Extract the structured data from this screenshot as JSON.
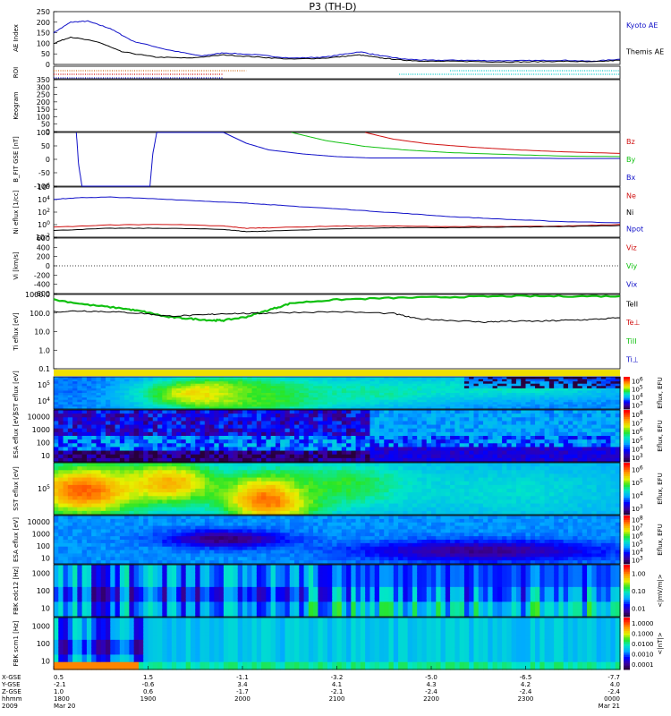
{
  "title": "P3 (TH-D)",
  "colors": {
    "black": "#000000",
    "blue": "#1010c8",
    "red": "#d01010",
    "green": "#10c010",
    "cyan": "#00c8c8",
    "orange": "#d07020"
  },
  "chart_data": [
    {
      "type": "line",
      "name": "ae-index",
      "ylabel": "AE Index",
      "ylim": [
        0,
        250
      ],
      "yticks": [
        "0",
        "50",
        "100",
        "150",
        "200",
        "250"
      ],
      "legend": [
        {
          "label": "Kyoto AE",
          "color": "blue"
        },
        {
          "label": "Themis AE",
          "color": "black"
        }
      ],
      "series": [
        {
          "name": "Kyoto AE",
          "color": "blue",
          "x": [
            0,
            0.03,
            0.06,
            0.1,
            0.14,
            0.2,
            0.26,
            0.3,
            0.36,
            0.42,
            0.48,
            0.54,
            0.58,
            0.62,
            0.66,
            0.72,
            0.78,
            0.84,
            0.9,
            0.95,
            1.0
          ],
          "y": [
            150,
            200,
            205,
            170,
            110,
            70,
            40,
            55,
            45,
            30,
            35,
            60,
            40,
            25,
            20,
            20,
            18,
            18,
            20,
            15,
            25
          ]
        },
        {
          "name": "Themis AE",
          "color": "black",
          "x": [
            0,
            0.03,
            0.08,
            0.12,
            0.18,
            0.24,
            0.3,
            0.36,
            0.42,
            0.48,
            0.54,
            0.58,
            0.62,
            0.66,
            0.72,
            0.78,
            0.84,
            0.9,
            0.95,
            1.0
          ],
          "y": [
            100,
            130,
            105,
            60,
            35,
            30,
            45,
            35,
            25,
            30,
            45,
            30,
            20,
            15,
            15,
            12,
            12,
            15,
            12,
            20
          ]
        }
      ]
    },
    {
      "type": "scatter",
      "name": "roi",
      "ylabel": "ROI",
      "segments": [
        {
          "row": 0,
          "x": [
            0.0,
            0.34
          ],
          "color": "orange"
        },
        {
          "row": 1,
          "x": [
            0.0,
            0.3
          ],
          "color": "red"
        },
        {
          "row": 2,
          "x": [
            0.0,
            0.3
          ],
          "color": "blue"
        },
        {
          "row": 0,
          "x": [
            0.7,
            1.0
          ],
          "color": "cyan"
        },
        {
          "row": 1,
          "x": [
            0.61,
            1.0
          ],
          "color": "cyan"
        }
      ]
    },
    {
      "type": "line",
      "name": "keogram",
      "ylabel": "Keogram",
      "ylim": [
        0,
        350
      ],
      "yticks": [
        "0",
        "50",
        "100",
        "150",
        "200",
        "250",
        "300",
        "350"
      ],
      "series": []
    },
    {
      "type": "line",
      "name": "b-field",
      "ylabel": "B_FIT GSE [nT]",
      "ylim": [
        -100,
        100
      ],
      "yticks": [
        "-100",
        "-50",
        "0",
        "50",
        "100"
      ],
      "legend": [
        {
          "label": "Bz",
          "color": "red"
        },
        {
          "label": "By",
          "color": "green"
        },
        {
          "label": "Bx",
          "color": "blue"
        }
      ],
      "series": [
        {
          "name": "Bx",
          "color": "blue",
          "x": [
            0.04,
            0.044,
            0.05,
            0.17,
            0.175,
            0.182,
            0.3,
            0.34,
            0.38,
            0.44,
            0.5,
            0.56,
            0.62,
            0.7,
            0.8,
            0.9,
            1.0
          ],
          "y": [
            100,
            -20,
            -100,
            -100,
            20,
            100,
            100,
            60,
            35,
            20,
            10,
            5,
            5,
            5,
            5,
            3,
            3
          ]
        },
        {
          "name": "By",
          "color": "green",
          "x": [
            0.42,
            0.48,
            0.55,
            0.62,
            0.7,
            0.8,
            0.9,
            1.0
          ],
          "y": [
            100,
            70,
            48,
            35,
            25,
            18,
            12,
            10
          ]
        },
        {
          "name": "Bz",
          "color": "red",
          "x": [
            0.55,
            0.6,
            0.66,
            0.74,
            0.82,
            0.9,
            1.0
          ],
          "y": [
            100,
            75,
            58,
            45,
            35,
            28,
            22
          ]
        }
      ]
    },
    {
      "type": "line",
      "name": "density",
      "ylabel": "Ni eflux [1/cc]",
      "ylog": true,
      "ylim": [
        -2,
        7
      ],
      "yticks": [
        "10^-2",
        "10^0",
        "10^2",
        "10^4",
        "10^6"
      ],
      "legend": [
        {
          "label": "Ne",
          "color": "red"
        },
        {
          "label": "Ni",
          "color": "black"
        },
        {
          "label": "Npot",
          "color": "blue"
        }
      ],
      "series": [
        {
          "name": "Npot",
          "color": "blue",
          "x": [
            0,
            0.05,
            0.1,
            0.2,
            0.3,
            0.36,
            0.4,
            0.5,
            0.6,
            0.7,
            0.8,
            0.9,
            1.0
          ],
          "y": [
            4.8,
            5.1,
            5.2,
            4.8,
            4.3,
            4.0,
            3.7,
            3.1,
            2.4,
            1.7,
            1.2,
            0.8,
            0.6
          ]
        },
        {
          "name": "Ne",
          "color": "red",
          "x": [
            0,
            0.1,
            0.2,
            0.3,
            0.34,
            0.38,
            0.5,
            0.6,
            0.7,
            0.8,
            0.9,
            1.0
          ],
          "y": [
            -0.2,
            0.2,
            0.3,
            0.0,
            -0.4,
            -0.3,
            0.0,
            0.0,
            -0.1,
            -0.1,
            0.0,
            0.3
          ]
        },
        {
          "name": "Ni",
          "color": "black",
          "x": [
            0,
            0.1,
            0.2,
            0.3,
            0.34,
            0.38,
            0.5,
            0.6,
            0.7,
            0.8,
            0.9,
            1.0
          ],
          "y": [
            -0.8,
            -0.4,
            -0.4,
            -0.6,
            -1.0,
            -0.9,
            -0.5,
            -0.3,
            -0.3,
            -0.2,
            -0.1,
            0.1
          ]
        }
      ]
    },
    {
      "type": "line",
      "name": "velocity",
      "ylabel": "Vi [km/s]",
      "ylim": [
        -600,
        600
      ],
      "yticks": [
        "-600",
        "-400",
        "-200",
        "0",
        "200",
        "400",
        "600"
      ],
      "legend": [
        {
          "label": "Viz",
          "color": "red"
        },
        {
          "label": "Viy",
          "color": "green"
        },
        {
          "label": "Vix",
          "color": "blue"
        }
      ],
      "series": []
    },
    {
      "type": "line",
      "name": "temperature",
      "ylabel": "Ti eflux [eV]",
      "ylog": true,
      "ylim": [
        -1,
        3.3
      ],
      "yticks": [
        "0.1",
        "1.0",
        "10.0",
        "100.0",
        "1000.0"
      ],
      "legend": [
        {
          "label": "TeII",
          "color": "black"
        },
        {
          "label": "Te⊥",
          "color": "red"
        },
        {
          "label": "TiII",
          "color": "green"
        },
        {
          "label": "Ti⊥",
          "color": "blue"
        }
      ],
      "series": [
        {
          "name": "TiII",
          "color": "green",
          "x": [
            0,
            0.06,
            0.12,
            0.16,
            0.2,
            0.24,
            0.28,
            0.3,
            0.34,
            0.38,
            0.42,
            0.5,
            0.6,
            0.7,
            0.8,
            0.9,
            1.0
          ],
          "y": [
            3.0,
            2.7,
            2.5,
            2.3,
            2.0,
            1.9,
            1.8,
            1.8,
            2.0,
            2.4,
            2.8,
            3.0,
            3.1,
            3.15,
            3.2,
            3.2,
            3.2
          ]
        },
        {
          "name": "TeII",
          "color": "black",
          "x": [
            0,
            0.05,
            0.1,
            0.16,
            0.2,
            0.26,
            0.3,
            0.36,
            0.4,
            0.5,
            0.6,
            0.64,
            0.7,
            0.76,
            0.8,
            0.86,
            0.9,
            0.95,
            1.0
          ],
          "y": [
            2.3,
            2.35,
            2.3,
            2.2,
            2.05,
            2.1,
            2.2,
            2.2,
            2.25,
            2.3,
            2.2,
            1.9,
            1.8,
            1.7,
            1.75,
            1.75,
            1.8,
            1.85,
            1.95
          ]
        }
      ]
    },
    {
      "type": "heatmap",
      "name": "sst-ion",
      "ylabel": "SST eflux [eV]",
      "yticks": [
        "10^4",
        "10^5"
      ],
      "colorbar": [
        "10^3",
        "10^4",
        "10^5",
        "10^6"
      ],
      "colorbar_label": "Eflux, EFU",
      "blobs": [
        {
          "x": 0.04,
          "y": 0.7,
          "rx": 0.08,
          "ry": 0.5,
          "v": 0.3
        },
        {
          "x": 0.28,
          "y": 0.5,
          "rx": 0.14,
          "ry": 0.55,
          "v": 0.85
        },
        {
          "x": 0.38,
          "y": 0.45,
          "rx": 0.16,
          "ry": 0.55,
          "v": 0.62
        },
        {
          "x": 0.55,
          "y": 0.55,
          "rx": 0.2,
          "ry": 0.5,
          "v": 0.5
        },
        {
          "x": 0.8,
          "y": 0.7,
          "rx": 0.25,
          "ry": 0.4,
          "v": 0.48
        }
      ],
      "base": 0.32,
      "dark_top_right": true
    },
    {
      "type": "heatmap",
      "name": "esa-ion",
      "ylabel": "ESA eflux [eV]",
      "yticks": [
        "10",
        "100",
        "1000",
        "10000"
      ],
      "colorbar": [
        "10^3",
        "10^4",
        "10^5",
        "10^6",
        "10^7",
        "10^8"
      ],
      "colorbar_label": "Eflux, EFU",
      "noisy": true
    },
    {
      "type": "heatmap",
      "name": "sst-electron",
      "ylabel": "SST eflux [eV]",
      "yticks": [
        "10^5"
      ],
      "colorbar": [
        "10^3",
        "10^4",
        "10^5",
        "10^6"
      ],
      "colorbar_label": "Eflux, EFU",
      "blobs": [
        {
          "x": 0.05,
          "y": 0.5,
          "rx": 0.12,
          "ry": 0.6,
          "v": 0.9
        },
        {
          "x": 0.2,
          "y": 0.65,
          "rx": 0.1,
          "ry": 0.5,
          "v": 0.8
        },
        {
          "x": 0.38,
          "y": 0.35,
          "rx": 0.1,
          "ry": 0.55,
          "v": 0.95
        },
        {
          "x": 0.52,
          "y": 0.6,
          "rx": 0.15,
          "ry": 0.5,
          "v": 0.6
        },
        {
          "x": 0.8,
          "y": 0.5,
          "rx": 0.25,
          "ry": 0.6,
          "v": 0.45
        }
      ],
      "base": 0.35
    },
    {
      "type": "heatmap",
      "name": "esa-electron",
      "ylabel": "ESA eflux [eV]",
      "yticks": [
        "10",
        "100",
        "1000",
        "10000"
      ],
      "colorbar": [
        "10^3",
        "10^4",
        "10^5",
        "10^6",
        "10^7",
        "10^8"
      ],
      "colorbar_label": "Eflux, EFU",
      "blobs": [
        {
          "x": 0.3,
          "y": 0.55,
          "rx": 0.12,
          "ry": 0.2,
          "v": 0.05
        },
        {
          "x": 0.75,
          "y": 0.3,
          "rx": 0.25,
          "ry": 0.25,
          "v": 0.08
        }
      ],
      "base": 0.33
    },
    {
      "type": "heatmap",
      "name": "fbk-edc12",
      "ylabel": "FBK edc12 [Hz]",
      "yticks": [
        "10",
        "100",
        "1000"
      ],
      "colorbar": [
        "0.01",
        "0.10",
        "1.00"
      ],
      "colorbar_label": "<|mV/m|>",
      "stripes": true
    },
    {
      "type": "heatmap",
      "name": "fbk-scm1",
      "ylabel": "FBK scm1 [Hz]",
      "yticks": [
        "10",
        "100",
        "1000"
      ],
      "colorbar": [
        "0.0001",
        "0.0010",
        "0.0100",
        "0.1000",
        "1.0000"
      ],
      "colorbar_label": "<|nT|>",
      "stripes": true
    }
  ],
  "x_axis": {
    "row_labels": [
      "X-GSE",
      "Y-GSE",
      "Z-GSE",
      "hhmm",
      "2009"
    ],
    "ticks": [
      {
        "x": 0.0,
        "vals": [
          "0.5",
          "-2.1",
          "1.0",
          "1800",
          "Mar 20"
        ]
      },
      {
        "x": 0.1667,
        "vals": [
          "1.5",
          "-0.6",
          "0.6",
          "1900",
          ""
        ]
      },
      {
        "x": 0.3333,
        "vals": [
          "-1.1",
          "3.4",
          "-1.7",
          "2000",
          ""
        ]
      },
      {
        "x": 0.5,
        "vals": [
          "-3.2",
          "4.1",
          "-2.1",
          "2100",
          ""
        ]
      },
      {
        "x": 0.6667,
        "vals": [
          "-5.0",
          "4.3",
          "-2.4",
          "2200",
          ""
        ]
      },
      {
        "x": 0.8333,
        "vals": [
          "-6.5",
          "4.2",
          "-2.4",
          "2300",
          ""
        ]
      },
      {
        "x": 1.0,
        "vals": [
          "-7.7",
          "4.0",
          "-2.4",
          "0000",
          "Mar 21"
        ]
      }
    ]
  }
}
